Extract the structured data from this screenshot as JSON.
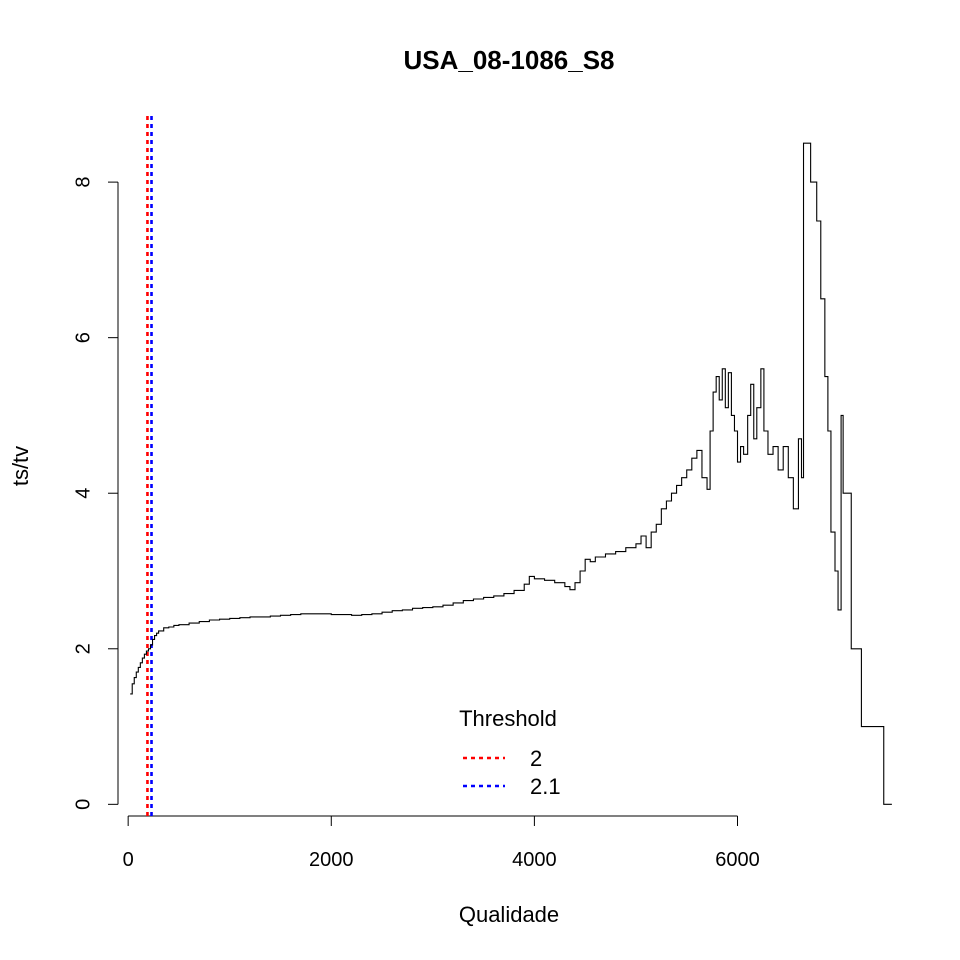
{
  "chart_data": {
    "type": "line",
    "title": "USA_08-1086_S8",
    "xlabel": "Qualidade",
    "ylabel": "ts/tv",
    "xlim": [
      -100,
      7600
    ],
    "ylim": [
      -0.15,
      8.85
    ],
    "x_ticks": [
      0,
      2000,
      4000,
      6000
    ],
    "y_ticks": [
      0,
      2,
      4,
      6,
      8
    ],
    "grid": false,
    "line_color": "#000000",
    "series": [
      {
        "style": "step",
        "points": [
          [
            20,
            1.42
          ],
          [
            40,
            1.55
          ],
          [
            60,
            1.63
          ],
          [
            80,
            1.7
          ],
          [
            100,
            1.76
          ],
          [
            120,
            1.82
          ],
          [
            140,
            1.88
          ],
          [
            160,
            1.93
          ],
          [
            180,
            1.97
          ],
          [
            200,
            2.0
          ],
          [
            220,
            2.05
          ],
          [
            240,
            2.12
          ],
          [
            260,
            2.17
          ],
          [
            280,
            2.2
          ],
          [
            300,
            2.23
          ],
          [
            350,
            2.27
          ],
          [
            400,
            2.28
          ],
          [
            450,
            2.3
          ],
          [
            500,
            2.31
          ],
          [
            600,
            2.33
          ],
          [
            700,
            2.35
          ],
          [
            800,
            2.37
          ],
          [
            900,
            2.38
          ],
          [
            1000,
            2.39
          ],
          [
            1100,
            2.4
          ],
          [
            1200,
            2.41
          ],
          [
            1300,
            2.41
          ],
          [
            1400,
            2.42
          ],
          [
            1500,
            2.43
          ],
          [
            1600,
            2.44
          ],
          [
            1700,
            2.45
          ],
          [
            1800,
            2.45
          ],
          [
            1900,
            2.45
          ],
          [
            2000,
            2.44
          ],
          [
            2100,
            2.44
          ],
          [
            2200,
            2.43
          ],
          [
            2300,
            2.44
          ],
          [
            2400,
            2.45
          ],
          [
            2500,
            2.47
          ],
          [
            2600,
            2.49
          ],
          [
            2700,
            2.5
          ],
          [
            2800,
            2.52
          ],
          [
            2900,
            2.53
          ],
          [
            3000,
            2.54
          ],
          [
            3100,
            2.56
          ],
          [
            3200,
            2.59
          ],
          [
            3300,
            2.62
          ],
          [
            3400,
            2.64
          ],
          [
            3500,
            2.66
          ],
          [
            3600,
            2.68
          ],
          [
            3700,
            2.71
          ],
          [
            3800,
            2.75
          ],
          [
            3900,
            2.83
          ],
          [
            3950,
            2.93
          ],
          [
            4000,
            2.9
          ],
          [
            4100,
            2.88
          ],
          [
            4200,
            2.85
          ],
          [
            4300,
            2.8
          ],
          [
            4350,
            2.76
          ],
          [
            4400,
            2.85
          ],
          [
            4450,
            3.0
          ],
          [
            4500,
            3.15
          ],
          [
            4550,
            3.12
          ],
          [
            4600,
            3.18
          ],
          [
            4700,
            3.22
          ],
          [
            4800,
            3.25
          ],
          [
            4900,
            3.3
          ],
          [
            5000,
            3.35
          ],
          [
            5050,
            3.45
          ],
          [
            5100,
            3.3
          ],
          [
            5150,
            3.5
          ],
          [
            5200,
            3.6
          ],
          [
            5250,
            3.8
          ],
          [
            5300,
            3.9
          ],
          [
            5350,
            4.0
          ],
          [
            5400,
            4.1
          ],
          [
            5450,
            4.2
          ],
          [
            5500,
            4.3
          ],
          [
            5550,
            4.45
          ],
          [
            5600,
            4.55
          ],
          [
            5650,
            4.2
          ],
          [
            5700,
            4.05
          ],
          [
            5730,
            4.8
          ],
          [
            5760,
            5.3
          ],
          [
            5790,
            5.5
          ],
          [
            5820,
            5.2
          ],
          [
            5850,
            5.6
          ],
          [
            5880,
            5.1
          ],
          [
            5910,
            5.55
          ],
          [
            5940,
            5.0
          ],
          [
            5970,
            4.8
          ],
          [
            6000,
            4.4
          ],
          [
            6030,
            4.6
          ],
          [
            6060,
            4.5
          ],
          [
            6100,
            5.0
          ],
          [
            6130,
            5.4
          ],
          [
            6160,
            4.7
          ],
          [
            6190,
            5.1
          ],
          [
            6230,
            5.6
          ],
          [
            6260,
            4.8
          ],
          [
            6300,
            4.5
          ],
          [
            6350,
            4.6
          ],
          [
            6400,
            4.3
          ],
          [
            6450,
            4.6
          ],
          [
            6500,
            4.2
          ],
          [
            6550,
            3.8
          ],
          [
            6600,
            4.7
          ],
          [
            6630,
            4.2
          ],
          [
            6650,
            8.5
          ],
          [
            6720,
            8.0
          ],
          [
            6780,
            7.5
          ],
          [
            6820,
            6.5
          ],
          [
            6860,
            5.5
          ],
          [
            6890,
            4.8
          ],
          [
            6920,
            3.5
          ],
          [
            6960,
            3.0
          ],
          [
            6990,
            2.5
          ],
          [
            7020,
            5.0
          ],
          [
            7040,
            4.0
          ],
          [
            7120,
            2.0
          ],
          [
            7220,
            1.0
          ],
          [
            7440,
            0.0
          ],
          [
            7520,
            0.0
          ]
        ]
      }
    ],
    "threshold_lines": [
      {
        "x": 190,
        "label": "2",
        "color": "#ff0000"
      },
      {
        "x": 230,
        "label": "2.1",
        "color": "#0000ff"
      }
    ],
    "legend": {
      "title": "Threshold",
      "position": "bottom-center",
      "entries": [
        {
          "label": "2",
          "color": "#ff0000"
        },
        {
          "label": "2.1",
          "color": "#0000ff"
        }
      ]
    }
  }
}
